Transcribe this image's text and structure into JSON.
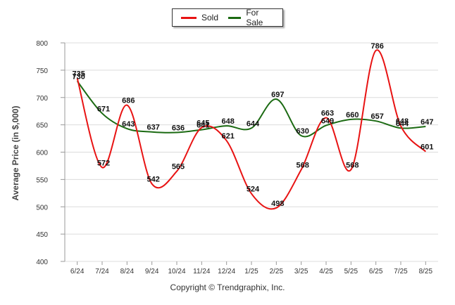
{
  "chart_data": {
    "type": "line",
    "categories": [
      "6/24",
      "7/24",
      "8/24",
      "9/24",
      "10/24",
      "11/24",
      "12/24",
      "1/25",
      "2/25",
      "3/25",
      "4/25",
      "5/25",
      "6/25",
      "7/25",
      "8/25"
    ],
    "series": [
      {
        "name": "Sold",
        "color": "#e81313",
        "values": [
          735,
          572,
          686,
          542,
          565,
          645,
          621,
          524,
          498,
          568,
          663,
          568,
          786,
          648,
          601
        ]
      },
      {
        "name": "For Sale",
        "color": "#1b6a12",
        "values": [
          730,
          671,
          643,
          637,
          636,
          641,
          648,
          644,
          697,
          630,
          649,
          660,
          657,
          644,
          647
        ]
      }
    ],
    "ylabel": "Average Price (in $,000)",
    "ylim": [
      400,
      800
    ],
    "yticks": [
      400,
      450,
      500,
      550,
      600,
      650,
      700,
      750,
      800
    ],
    "grid": true,
    "legend": "top-center"
  },
  "footer": {
    "copyright": "Copyright © Trendgraphix, Inc."
  }
}
